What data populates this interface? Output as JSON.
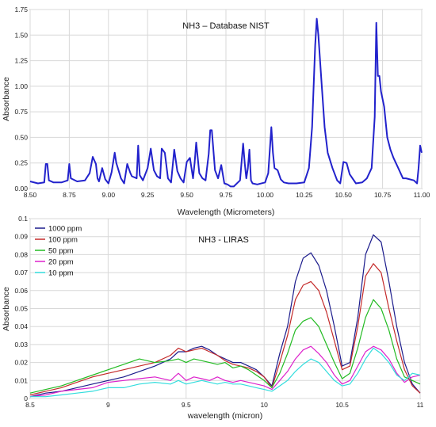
{
  "chart_data": [
    {
      "type": "line",
      "title": "NH3 – Database NIST",
      "xlabel": "Wavelength (Micrometers)",
      "ylabel": "Absorbance",
      "xlim": [
        8.5,
        11.0
      ],
      "ylim": [
        0,
        1.75
      ],
      "grid": true,
      "xticks": [
        8.5,
        8.75,
        9.0,
        9.25,
        9.5,
        9.75,
        10.0,
        10.25,
        10.5,
        10.75,
        11.0
      ],
      "xtick_labels": [
        "8.50",
        "8.75",
        "9.00",
        "9.25",
        "9.50",
        "9.75",
        "10.00",
        "10.25",
        "10.50",
        "10.75",
        "11.00"
      ],
      "yticks": [
        0,
        0.25,
        0.5,
        0.75,
        1.0,
        1.25,
        1.5,
        1.75
      ],
      "ytick_labels": [
        "0.00",
        "0.25",
        "0.50",
        "0.75",
        "1.00",
        "1.25",
        "1.50",
        "1.75"
      ],
      "series": [
        {
          "color": "#2222cc",
          "x": [
            8.5,
            8.55,
            8.59,
            8.6,
            8.61,
            8.62,
            8.65,
            8.7,
            8.74,
            8.75,
            8.76,
            8.8,
            8.85,
            8.88,
            8.9,
            8.92,
            8.93,
            8.94,
            8.96,
            8.98,
            9.0,
            9.02,
            9.04,
            9.05,
            9.08,
            9.1,
            9.12,
            9.14,
            9.15,
            9.18,
            9.19,
            9.2,
            9.22,
            9.25,
            9.27,
            9.29,
            9.31,
            9.33,
            9.34,
            9.36,
            9.38,
            9.4,
            9.42,
            9.44,
            9.46,
            9.48,
            9.5,
            9.52,
            9.54,
            9.55,
            9.56,
            9.58,
            9.6,
            9.62,
            9.64,
            9.65,
            9.66,
            9.68,
            9.7,
            9.72,
            9.74,
            9.76,
            9.78,
            9.8,
            9.84,
            9.86,
            9.87,
            9.88,
            9.89,
            9.9,
            9.91,
            9.92,
            9.95,
            10.0,
            10.02,
            10.04,
            10.05,
            10.06,
            10.08,
            10.1,
            10.12,
            10.15,
            10.2,
            10.25,
            10.28,
            10.3,
            10.32,
            10.33,
            10.34,
            10.36,
            10.38,
            10.4,
            10.43,
            10.46,
            10.48,
            10.5,
            10.52,
            10.54,
            10.58,
            10.62,
            10.65,
            10.68,
            10.7,
            10.71,
            10.72,
            10.73,
            10.74,
            10.76,
            10.78,
            10.8,
            10.82,
            10.85,
            10.88,
            10.9,
            10.95,
            10.97,
            10.98,
            10.99,
            11.0
          ],
          "y": [
            0.07,
            0.05,
            0.06,
            0.24,
            0.24,
            0.08,
            0.06,
            0.06,
            0.08,
            0.24,
            0.1,
            0.07,
            0.08,
            0.15,
            0.31,
            0.24,
            0.1,
            0.07,
            0.2,
            0.09,
            0.05,
            0.16,
            0.35,
            0.25,
            0.1,
            0.05,
            0.24,
            0.15,
            0.12,
            0.1,
            0.42,
            0.13,
            0.08,
            0.2,
            0.39,
            0.18,
            0.12,
            0.1,
            0.39,
            0.35,
            0.1,
            0.06,
            0.38,
            0.17,
            0.1,
            0.06,
            0.26,
            0.3,
            0.1,
            0.25,
            0.45,
            0.15,
            0.1,
            0.08,
            0.34,
            0.57,
            0.57,
            0.18,
            0.1,
            0.23,
            0.05,
            0.04,
            0.02,
            0.02,
            0.08,
            0.44,
            0.25,
            0.1,
            0.2,
            0.38,
            0.08,
            0.05,
            0.04,
            0.06,
            0.15,
            0.6,
            0.35,
            0.2,
            0.18,
            0.09,
            0.06,
            0.05,
            0.05,
            0.06,
            0.2,
            0.6,
            1.4,
            1.66,
            1.5,
            1.05,
            0.6,
            0.35,
            0.2,
            0.08,
            0.05,
            0.26,
            0.25,
            0.14,
            0.05,
            0.06,
            0.1,
            0.2,
            0.7,
            1.62,
            1.1,
            1.1,
            0.95,
            0.8,
            0.5,
            0.38,
            0.3,
            0.2,
            0.1,
            0.1,
            0.08,
            0.05,
            0.2,
            0.42,
            0.35
          ]
        }
      ]
    },
    {
      "type": "line",
      "title": "NH3 - LIRAS",
      "xlabel": "wavelength (micron)",
      "ylabel": "Absorbance",
      "xlim": [
        8.5,
        11.0
      ],
      "ylim": [
        0,
        0.1
      ],
      "grid": true,
      "xticks": [
        8.5,
        9.0,
        9.5,
        10.0,
        10.5,
        11.0
      ],
      "xtick_labels": [
        "8.5",
        "9",
        "9.5",
        "10",
        "10.5",
        "11"
      ],
      "yticks": [
        0,
        0.01,
        0.02,
        0.03,
        0.04,
        0.05,
        0.06,
        0.07,
        0.08,
        0.09,
        0.1
      ],
      "ytick_labels": [
        "0",
        "0.01",
        "0.02",
        "0.03",
        "0.04",
        "0.05",
        "0.06",
        "0.07",
        "0.08",
        "0.09",
        "0.1"
      ],
      "legend": "top-left",
      "series": [
        {
          "name": "1000 ppm",
          "color": "#1c1c8c",
          "x": [
            8.5,
            8.6,
            8.7,
            8.8,
            8.9,
            9.0,
            9.1,
            9.2,
            9.3,
            9.4,
            9.45,
            9.5,
            9.55,
            9.6,
            9.65,
            9.7,
            9.75,
            9.8,
            9.85,
            9.9,
            9.95,
            10.0,
            10.05,
            10.1,
            10.15,
            10.2,
            10.25,
            10.3,
            10.35,
            10.4,
            10.45,
            10.5,
            10.55,
            10.6,
            10.65,
            10.7,
            10.75,
            10.8,
            10.85,
            10.9,
            10.95,
            11.0
          ],
          "y": [
            0.001,
            0.003,
            0.004,
            0.006,
            0.008,
            0.01,
            0.012,
            0.015,
            0.018,
            0.022,
            0.026,
            0.026,
            0.028,
            0.029,
            0.027,
            0.024,
            0.022,
            0.02,
            0.02,
            0.018,
            0.016,
            0.012,
            0.007,
            0.025,
            0.04,
            0.065,
            0.078,
            0.081,
            0.074,
            0.06,
            0.04,
            0.018,
            0.02,
            0.045,
            0.08,
            0.091,
            0.087,
            0.065,
            0.04,
            0.02,
            0.008,
            0.003
          ]
        },
        {
          "name": "100 ppm",
          "color": "#c42a2a",
          "x": [
            8.5,
            8.6,
            8.7,
            8.8,
            8.9,
            9.0,
            9.1,
            9.2,
            9.3,
            9.4,
            9.45,
            9.5,
            9.55,
            9.6,
            9.65,
            9.7,
            9.75,
            9.8,
            9.85,
            9.9,
            9.95,
            10.0,
            10.05,
            10.1,
            10.15,
            10.2,
            10.25,
            10.3,
            10.35,
            10.4,
            10.45,
            10.5,
            10.55,
            10.6,
            10.65,
            10.7,
            10.75,
            10.8,
            10.85,
            10.9,
            10.95,
            11.0
          ],
          "y": [
            0.002,
            0.004,
            0.006,
            0.009,
            0.012,
            0.014,
            0.016,
            0.018,
            0.02,
            0.024,
            0.028,
            0.026,
            0.027,
            0.028,
            0.026,
            0.024,
            0.021,
            0.019,
            0.018,
            0.017,
            0.015,
            0.012,
            0.006,
            0.02,
            0.035,
            0.055,
            0.063,
            0.065,
            0.06,
            0.048,
            0.032,
            0.016,
            0.018,
            0.04,
            0.068,
            0.075,
            0.07,
            0.05,
            0.032,
            0.016,
            0.007,
            0.003
          ]
        },
        {
          "name": "50 ppm",
          "color": "#22bb22",
          "x": [
            8.5,
            8.6,
            8.7,
            8.8,
            8.9,
            9.0,
            9.1,
            9.2,
            9.3,
            9.4,
            9.45,
            9.5,
            9.55,
            9.6,
            9.65,
            9.7,
            9.75,
            9.8,
            9.85,
            9.9,
            9.95,
            10.0,
            10.05,
            10.1,
            10.15,
            10.2,
            10.25,
            10.3,
            10.35,
            10.4,
            10.45,
            10.5,
            10.55,
            10.6,
            10.65,
            10.7,
            10.75,
            10.8,
            10.85,
            10.9,
            10.95,
            11.0
          ],
          "y": [
            0.003,
            0.005,
            0.007,
            0.01,
            0.013,
            0.016,
            0.019,
            0.022,
            0.02,
            0.021,
            0.022,
            0.02,
            0.022,
            0.021,
            0.02,
            0.019,
            0.02,
            0.017,
            0.018,
            0.016,
            0.013,
            0.01,
            0.006,
            0.014,
            0.025,
            0.038,
            0.043,
            0.045,
            0.04,
            0.03,
            0.02,
            0.011,
            0.014,
            0.028,
            0.045,
            0.055,
            0.05,
            0.038,
            0.022,
            0.012,
            0.01,
            0.008
          ]
        },
        {
          "name": "20 ppm",
          "color": "#dd22cc",
          "x": [
            8.5,
            8.6,
            8.7,
            8.8,
            8.9,
            9.0,
            9.1,
            9.2,
            9.3,
            9.4,
            9.45,
            9.5,
            9.55,
            9.6,
            9.65,
            9.7,
            9.75,
            9.8,
            9.85,
            9.9,
            9.95,
            10.0,
            10.05,
            10.1,
            10.15,
            10.2,
            10.25,
            10.3,
            10.35,
            10.4,
            10.45,
            10.5,
            10.55,
            10.6,
            10.65,
            10.7,
            10.75,
            10.8,
            10.85,
            10.9,
            10.95,
            11.0
          ],
          "y": [
            0.001,
            0.002,
            0.004,
            0.005,
            0.006,
            0.009,
            0.01,
            0.011,
            0.012,
            0.01,
            0.014,
            0.01,
            0.012,
            0.011,
            0.01,
            0.012,
            0.01,
            0.009,
            0.01,
            0.009,
            0.008,
            0.007,
            0.005,
            0.01,
            0.015,
            0.022,
            0.027,
            0.029,
            0.025,
            0.02,
            0.013,
            0.008,
            0.01,
            0.018,
            0.026,
            0.029,
            0.027,
            0.022,
            0.014,
            0.009,
            0.012,
            0.013
          ]
        },
        {
          "name": "10 ppm",
          "color": "#33dddd",
          "x": [
            8.5,
            8.6,
            8.7,
            8.8,
            8.9,
            9.0,
            9.1,
            9.2,
            9.3,
            9.4,
            9.45,
            9.5,
            9.55,
            9.6,
            9.65,
            9.7,
            9.75,
            9.8,
            9.85,
            9.9,
            9.95,
            10.0,
            10.05,
            10.1,
            10.15,
            10.2,
            10.25,
            10.3,
            10.35,
            10.4,
            10.45,
            10.5,
            10.55,
            10.6,
            10.65,
            10.7,
            10.75,
            10.8,
            10.85,
            10.9,
            10.95,
            11.0
          ],
          "y": [
            0.001,
            0.001,
            0.002,
            0.003,
            0.004,
            0.006,
            0.006,
            0.008,
            0.009,
            0.008,
            0.01,
            0.008,
            0.009,
            0.01,
            0.009,
            0.008,
            0.009,
            0.008,
            0.008,
            0.007,
            0.006,
            0.005,
            0.004,
            0.007,
            0.01,
            0.015,
            0.019,
            0.022,
            0.02,
            0.015,
            0.01,
            0.007,
            0.008,
            0.014,
            0.022,
            0.028,
            0.025,
            0.02,
            0.013,
            0.01,
            0.014,
            0.013
          ]
        }
      ]
    }
  ]
}
